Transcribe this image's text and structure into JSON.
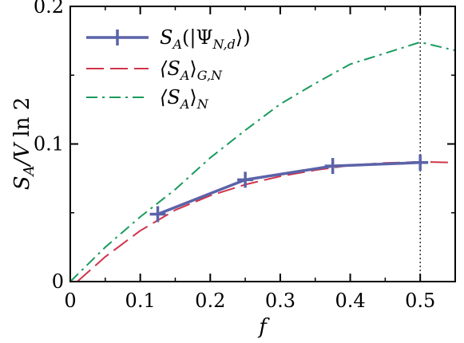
{
  "chart_data": {
    "type": "line",
    "xlabel": "f",
    "ylabel": "S_A/V ln 2",
    "xlim": [
      0,
      0.55
    ],
    "ylim": [
      0,
      0.2
    ],
    "x_ticks": [
      0,
      0.1,
      0.2,
      0.3,
      0.4,
      0.5
    ],
    "x_tick_labels": [
      "0",
      "0.1",
      "0.2",
      "0.3",
      "0.4",
      "0.5"
    ],
    "y_ticks": [
      0,
      0.1,
      0.2
    ],
    "y_tick_labels": [
      "0",
      "0.1",
      "0.2"
    ],
    "vertical_reference_line": {
      "x": 0.5,
      "style": "dotted"
    },
    "legend_position": "top-left",
    "grid": false,
    "series": [
      {
        "name": "S_A(|Ψ_{N,d}⟩)",
        "color": "#5b63a8",
        "style": "solid-with-plus-markers",
        "x": [
          0.125,
          0.25,
          0.375,
          0.5
        ],
        "y": [
          0.049,
          0.074,
          0.084,
          0.0865
        ]
      },
      {
        "name": "⟨S_A⟩_{G,N}",
        "color": "#d0344a",
        "style": "dashed",
        "x": [
          0.01,
          0.05,
          0.1,
          0.15,
          0.2,
          0.25,
          0.3,
          0.35,
          0.4,
          0.45,
          0.5,
          0.55
        ],
        "y": [
          0.0,
          0.018,
          0.037,
          0.052,
          0.0625,
          0.0705,
          0.0765,
          0.081,
          0.0845,
          0.0862,
          0.087,
          0.0865
        ]
      },
      {
        "name": "⟨S_A⟩_N",
        "color": "#1a9a5e",
        "style": "dash-dot",
        "x": [
          0.0,
          0.05,
          0.1,
          0.15,
          0.2,
          0.25,
          0.3,
          0.35,
          0.4,
          0.45,
          0.5,
          0.55
        ],
        "y": [
          0.0,
          0.025,
          0.047,
          0.067,
          0.09,
          0.11,
          0.129,
          0.144,
          0.158,
          0.166,
          0.174,
          0.168
        ]
      }
    ]
  },
  "legend": {
    "items": [
      {
        "main": "S",
        "sub": "A",
        "suffix": "(|Ψ",
        "sub2": "N,d",
        "end": "⟩)"
      },
      {
        "main": "⟨S",
        "sub": "A",
        "suffix": "⟩",
        "sub2": "G,N",
        "end": ""
      },
      {
        "main": "⟨S",
        "sub": "A",
        "suffix": "⟩",
        "sub2": "N",
        "end": ""
      }
    ]
  }
}
